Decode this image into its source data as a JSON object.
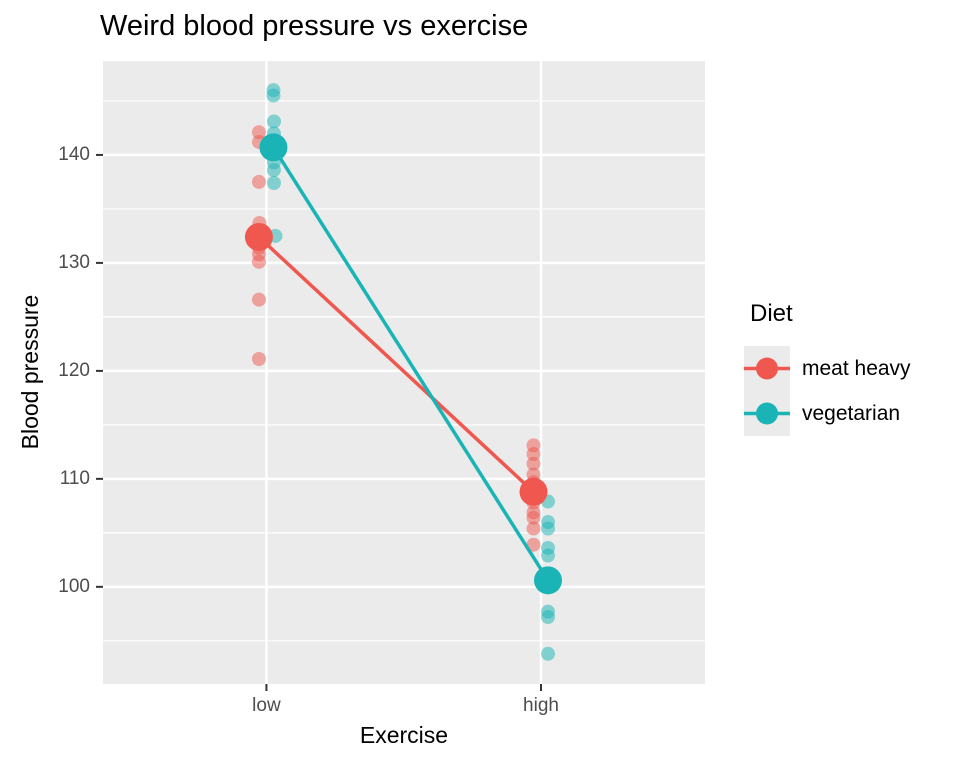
{
  "title": "Weird blood pressure vs exercise",
  "axes": {
    "x_label": "Exercise",
    "y_label": "Blood pressure",
    "x_tick_labels": [
      "low",
      "high"
    ],
    "y_tick_labels": [
      "100",
      "110",
      "120",
      "130",
      "140"
    ]
  },
  "legend": {
    "title": "Diet",
    "items": [
      {
        "label": "meat heavy",
        "color": "#F0584F"
      },
      {
        "label": "vegetarian",
        "color": "#1AB3B6"
      }
    ]
  },
  "colors": {
    "panel_bg": "#EBEBEB",
    "gridline": "#FFFFFF",
    "tick_mark": "#333333",
    "tick_text": "#4D4D4D",
    "text": "#000000",
    "legend_key_bg": "#EBEBEB",
    "meat_heavy": "#F0584F",
    "vegetarian": "#1AB3B6"
  },
  "chart_data": {
    "type": "scatter",
    "title": "Weird blood pressure vs exercise",
    "xlabel": "Exercise",
    "ylabel": "Blood pressure",
    "categories": [
      "low",
      "high"
    ],
    "ylim": [
      91,
      148.7
    ],
    "y_major_ticks": [
      100,
      110,
      120,
      130,
      140
    ],
    "y_minor_ticks": [
      95,
      105,
      115,
      125,
      135,
      145
    ],
    "grid": true,
    "legend_position": "right",
    "series": [
      {
        "name": "meat heavy",
        "color": "#F0584F",
        "column_offset": -7.5,
        "jitter_points": {
          "low": [
            [
              142.1,
              0
            ],
            [
              141.2,
              0
            ],
            [
              137.5,
              0
            ],
            [
              133.7,
              0.5
            ],
            [
              131.4,
              0
            ],
            [
              130.8,
              0
            ],
            [
              130.1,
              0
            ],
            [
              126.6,
              0
            ],
            [
              121.1,
              0
            ]
          ],
          "high": [
            [
              113.1,
              0
            ],
            [
              112.3,
              0
            ],
            [
              111.4,
              0
            ],
            [
              110.4,
              0
            ],
            [
              109.7,
              0
            ],
            [
              107.8,
              0
            ],
            [
              106.9,
              0
            ],
            [
              106.4,
              0
            ],
            [
              105.4,
              0
            ],
            [
              103.9,
              0
            ]
          ]
        },
        "means": {
          "low": 132.4,
          "high": 108.8
        }
      },
      {
        "name": "vegetarian",
        "color": "#1AB3B6",
        "column_offset": 7,
        "jitter_points": {
          "low": [
            [
              146.0,
              0
            ],
            [
              145.5,
              0
            ],
            [
              143.1,
              0.5
            ],
            [
              142.0,
              0.5
            ],
            [
              139.3,
              0.5
            ],
            [
              138.6,
              0.5
            ],
            [
              137.4,
              0.5
            ],
            [
              132.5,
              2
            ]
          ],
          "high": [
            [
              107.9,
              0
            ],
            [
              106.0,
              0
            ],
            [
              105.4,
              0
            ],
            [
              103.6,
              0
            ],
            [
              102.9,
              0
            ],
            [
              97.7,
              0
            ],
            [
              97.2,
              0
            ],
            [
              93.8,
              0
            ]
          ]
        },
        "means": {
          "low": 140.7,
          "high": 100.6
        }
      }
    ],
    "style": {
      "jitter_radius": 7,
      "jitter_opacity": 0.5,
      "mean_radius": 14,
      "line_width": 3.5
    }
  }
}
